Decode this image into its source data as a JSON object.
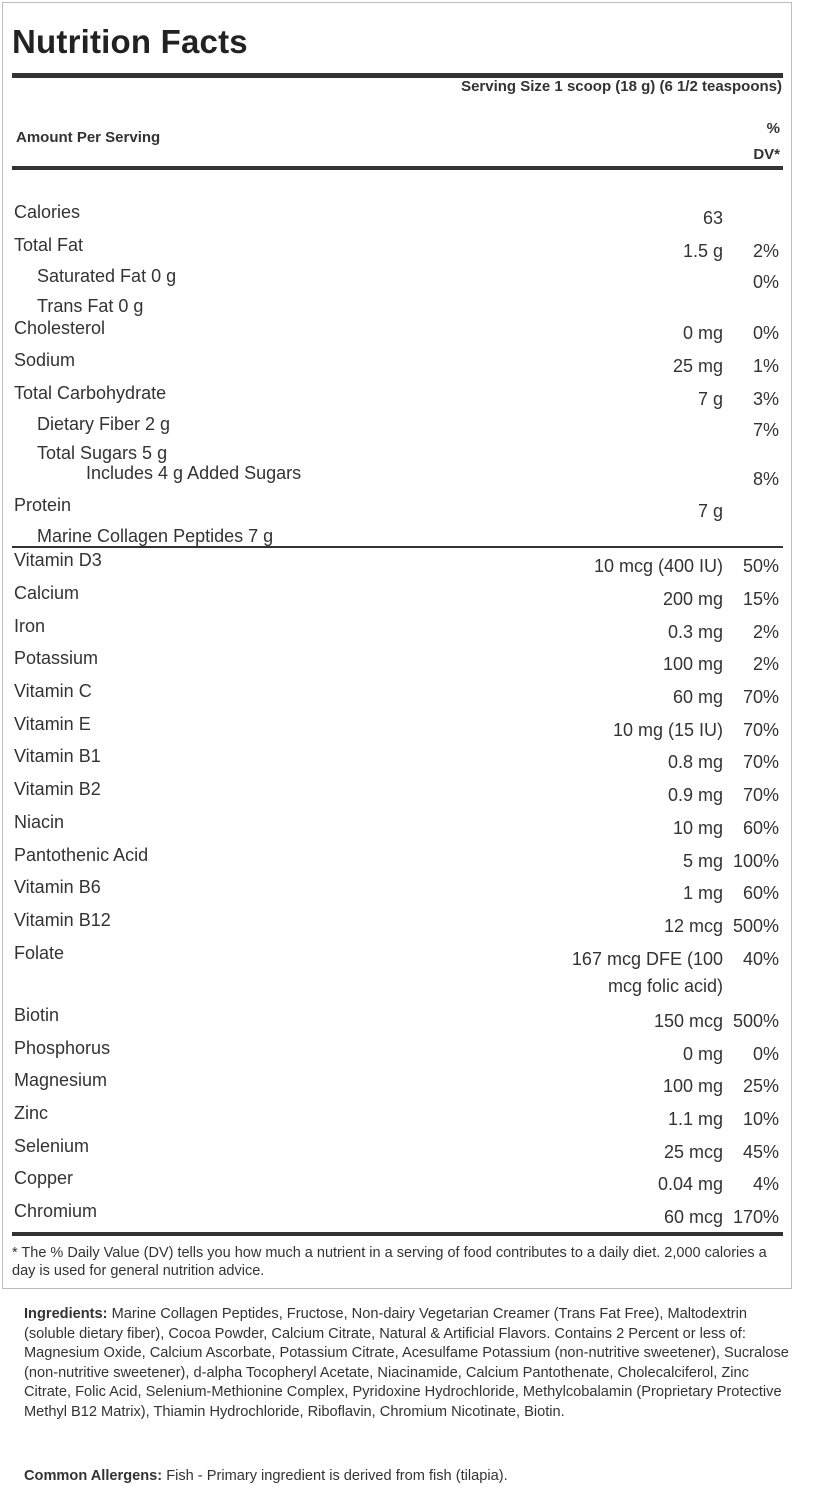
{
  "label": {
    "title": "Nutrition Facts",
    "serving_size": "Serving Size 1 scoop (18 g) (6 1/2 teaspoons)",
    "amount_per_serving": "Amount Per Serving",
    "dv_header_line1": "%",
    "dv_header_line2": "DV*"
  },
  "macros": [
    {
      "name": "Calories",
      "amount": "63",
      "dv": ""
    },
    {
      "name": "Total Fat",
      "amount": "1.5 g",
      "dv": "2%"
    },
    {
      "name": "Saturated Fat   0 g",
      "amount": "",
      "dv": "0%"
    },
    {
      "name": "Trans Fat   0 g",
      "amount": "",
      "dv": ""
    },
    {
      "name": "Cholesterol",
      "amount": "0 mg",
      "dv": "0%"
    },
    {
      "name": "Sodium",
      "amount": "25 mg",
      "dv": "1%"
    },
    {
      "name": "Total Carbohydrate",
      "amount": "7 g",
      "dv": "3%"
    },
    {
      "name": "Dietary Fiber   2 g",
      "amount": "",
      "dv": "7%"
    },
    {
      "name": "Total Sugars 5 g",
      "amount": "",
      "dv": ""
    },
    {
      "name": "Includes 4 g Added Sugars",
      "amount": "",
      "dv": "8%"
    },
    {
      "name": "Protein",
      "amount": "7 g",
      "dv": ""
    },
    {
      "name": "Marine Collagen Peptides   7 g",
      "amount": "",
      "dv": ""
    }
  ],
  "micros": [
    {
      "name": "Vitamin D3",
      "amount": "10 mcg (400 IU)",
      "dv": "50%"
    },
    {
      "name": "Calcium",
      "amount": "200 mg",
      "dv": "15%"
    },
    {
      "name": "Iron",
      "amount": "0.3 mg",
      "dv": "2%"
    },
    {
      "name": "Potassium",
      "amount": "100 mg",
      "dv": "2%"
    },
    {
      "name": "Vitamin C",
      "amount": "60 mg",
      "dv": "70%"
    },
    {
      "name": "Vitamin E",
      "amount": "10 mg (15 IU)",
      "dv": "70%"
    },
    {
      "name": "Vitamin B1",
      "amount": "0.8 mg",
      "dv": "70%"
    },
    {
      "name": "Vitamin B2",
      "amount": "0.9 mg",
      "dv": "70%"
    },
    {
      "name": "Niacin",
      "amount": "10 mg",
      "dv": "60%"
    },
    {
      "name": "Pantothenic Acid",
      "amount": "5 mg",
      "dv": "100%"
    },
    {
      "name": "Vitamin B6",
      "amount": "1 mg",
      "dv": "60%"
    },
    {
      "name": "Vitamin B12",
      "amount": "12 mcg",
      "dv": "500%"
    },
    {
      "name": "Folate",
      "amount": "167 mcg DFE (100",
      "amount_line2": "mcg folic acid)",
      "dv": "40%"
    },
    {
      "name": "Biotin",
      "amount": "150 mcg",
      "dv": "500%"
    },
    {
      "name": "Phosphorus",
      "amount": "0 mg",
      "dv": "0%"
    },
    {
      "name": "Magnesium",
      "amount": "100 mg",
      "dv": "25%"
    },
    {
      "name": "Zinc",
      "amount": "1.1 mg",
      "dv": "10%"
    },
    {
      "name": "Selenium",
      "amount": "25 mcg",
      "dv": "45%"
    },
    {
      "name": "Copper",
      "amount": "0.04 mg",
      "dv": "4%"
    },
    {
      "name": "Chromium",
      "amount": "60 mcg",
      "dv": "170%"
    }
  ],
  "footnote": "* The % Daily Value (DV) tells you how much a nutrient in a serving of food contributes to a daily diet. 2,000 calories a day is used for general nutrition advice.",
  "ingredients": {
    "label": "Ingredients:",
    "text": "Marine Collagen Peptides, Fructose, Non-dairy Vegetarian Creamer (Trans Fat Free), Maltodextrin (soluble dietary fiber), Cocoa Powder, Calcium Citrate, Natural & Artificial Flavors. Contains 2 Percent or less of: Magnesium Oxide, Calcium Ascorbate, Potassium Citrate, Acesulfame Potassium (non-nutritive sweetener), Sucralose (non-nutritive sweetener), d-alpha Tocopheryl Acetate, Niacinamide, Calcium Pantothenate, Cholecalciferol, Zinc Citrate, Folic Acid, Selenium-Methionine Complex, Pyridoxine Hydrochloride, Methylcobalamin (Proprietary Protective Methyl B12 Matrix), Thiamin Hydrochloride, Riboflavin, Chromium Nicotinate, Biotin."
  },
  "allergens": {
    "label": "Common Allergens:",
    "text": "Fish - Primary ingredient is derived from fish (tilapia)."
  }
}
